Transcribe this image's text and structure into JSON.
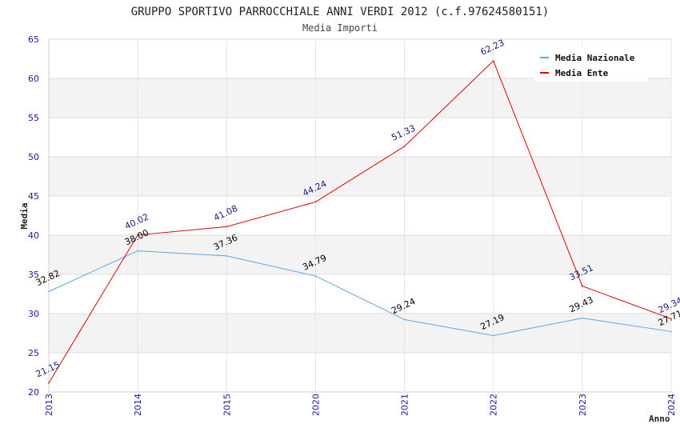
{
  "chart_data": {
    "type": "line",
    "title": "GRUPPO SPORTIVO PARROCCHIALE ANNI VERDI 2012 (c.f.97624580151)",
    "subtitle": "Media Importi",
    "xlabel": "Anno",
    "ylabel": "Media",
    "ylim": [
      20,
      65
    ],
    "yticks": [
      "20",
      "25",
      "30",
      "35",
      "40",
      "45",
      "50",
      "55",
      "60",
      "65"
    ],
    "categories": [
      "2013",
      "2014",
      "2015",
      "2020",
      "2021",
      "2022",
      "2023",
      "2024"
    ],
    "series": [
      {
        "name": "Media Nazionale",
        "color": "#5aa5e6",
        "label_color": "#000000",
        "values": [
          32.82,
          38.0,
          37.36,
          34.79,
          29.24,
          27.19,
          29.43,
          27.71
        ],
        "labels": [
          "32.82",
          "38.00",
          "37.36",
          "34.79",
          "29.24",
          "27.19",
          "29.43",
          "27.71"
        ]
      },
      {
        "name": "Media Ente",
        "color": "#e00000",
        "label_color": "#1a1a80",
        "values": [
          21.15,
          40.02,
          41.08,
          44.24,
          51.33,
          62.23,
          33.51,
          29.34
        ],
        "labels": [
          "21.15",
          "40.02",
          "41.08",
          "44.24",
          "51.33",
          "62.23",
          "33.51",
          "29.34"
        ]
      }
    ],
    "grid": true,
    "legend_position": "top-right"
  }
}
